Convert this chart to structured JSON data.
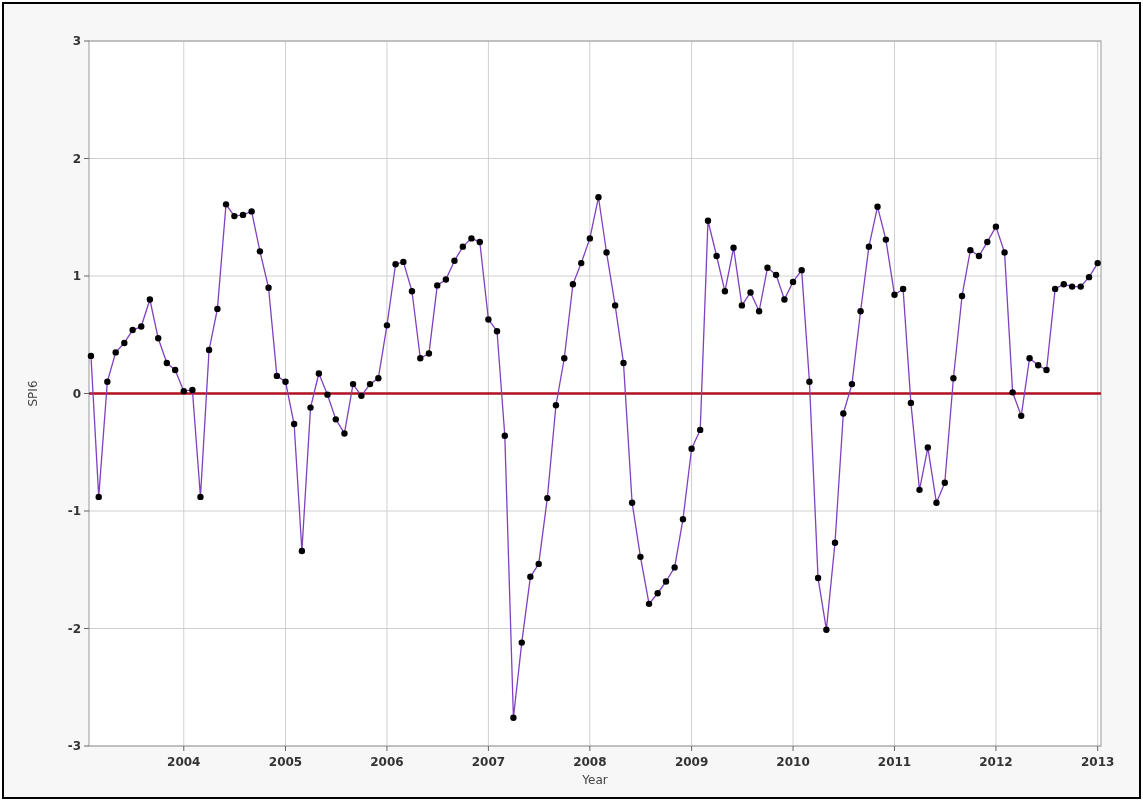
{
  "chart_data": {
    "type": "line",
    "xlabel": "Year",
    "ylabel": "SPI6",
    "x": [
      "2003-02",
      "2003-03",
      "2003-04",
      "2003-05",
      "2003-06",
      "2003-07",
      "2003-08",
      "2003-09",
      "2003-10",
      "2003-11",
      "2003-12",
      "2004-01",
      "2004-02",
      "2004-03",
      "2004-04",
      "2004-05",
      "2004-06",
      "2004-07",
      "2004-08",
      "2004-09",
      "2004-10",
      "2004-11",
      "2004-12",
      "2005-01",
      "2005-02",
      "2005-03",
      "2005-04",
      "2005-05",
      "2005-06",
      "2005-07",
      "2005-08",
      "2005-09",
      "2005-10",
      "2005-11",
      "2005-12",
      "2006-01",
      "2006-02",
      "2006-03",
      "2006-04",
      "2006-05",
      "2006-06",
      "2006-07",
      "2006-08",
      "2006-09",
      "2006-10",
      "2006-11",
      "2006-12",
      "2007-01",
      "2007-02",
      "2007-03",
      "2007-04",
      "2007-05",
      "2007-06",
      "2007-07",
      "2007-08",
      "2007-09",
      "2007-10",
      "2007-11",
      "2007-12",
      "2008-01",
      "2008-02",
      "2008-03",
      "2008-04",
      "2008-05",
      "2008-06",
      "2008-07",
      "2008-08",
      "2008-09",
      "2008-10",
      "2008-11",
      "2008-12",
      "2009-01",
      "2009-02",
      "2009-03",
      "2009-04",
      "2009-05",
      "2009-06",
      "2009-07",
      "2009-08",
      "2009-09",
      "2009-10",
      "2009-11",
      "2009-12",
      "2010-01",
      "2010-02",
      "2010-03",
      "2010-04",
      "2010-05",
      "2010-06",
      "2010-07",
      "2010-08",
      "2010-09",
      "2010-10",
      "2010-11",
      "2010-12",
      "2011-01",
      "2011-02",
      "2011-03",
      "2011-04",
      "2011-05",
      "2011-06",
      "2011-07",
      "2011-08",
      "2011-09",
      "2011-10",
      "2011-11",
      "2011-12",
      "2012-01",
      "2012-02",
      "2012-03",
      "2012-04",
      "2012-05",
      "2012-06",
      "2012-07",
      "2012-08",
      "2012-09",
      "2012-10",
      "2012-11",
      "2012-12",
      "2013-01"
    ],
    "series": [
      {
        "color": "#8040c0",
        "values": [
          0.32,
          -0.88,
          0.1,
          0.35,
          0.43,
          0.54,
          0.57,
          0.8,
          0.47,
          0.26,
          0.2,
          0.02,
          0.03,
          -0.88,
          0.37,
          0.72,
          1.61,
          1.51,
          1.52,
          1.55,
          1.21,
          0.9,
          0.15,
          0.1,
          -0.26,
          -1.34,
          -0.12,
          0.17,
          -0.01,
          -0.22,
          -0.34,
          0.08,
          -0.02,
          0.08,
          0.13,
          0.58,
          1.1,
          1.12,
          0.87,
          0.3,
          0.34,
          0.92,
          0.97,
          1.13,
          1.25,
          1.32,
          1.29,
          0.63,
          0.53,
          -0.36,
          -2.76,
          -2.12,
          -1.56,
          -1.45,
          -0.89,
          -0.1,
          0.3,
          0.93,
          1.11,
          1.32,
          1.67,
          1.2,
          0.75,
          0.26,
          -0.93,
          -1.39,
          -1.79,
          -1.7,
          -1.6,
          -1.48,
          -1.07,
          -0.47,
          -0.31,
          1.47,
          1.17,
          0.87,
          1.24,
          0.75,
          0.86,
          0.7,
          1.07,
          1.01,
          0.8,
          0.95,
          1.05,
          0.1,
          -1.57,
          -2.01,
          -1.27,
          -0.17,
          0.08,
          0.7,
          1.25,
          1.59,
          1.31,
          0.84,
          0.89,
          -0.08,
          -0.82,
          -0.46,
          -0.93,
          -0.76,
          0.13,
          0.83,
          1.22,
          1.17,
          1.29,
          1.42,
          1.2,
          0.01,
          -0.19,
          0.3,
          0.24,
          0.2,
          0.89,
          0.93,
          0.91,
          0.91,
          0.99,
          1.11
        ]
      }
    ],
    "xlim": [
      "2003-01-25",
      "2013-01-13"
    ],
    "xticks": [
      "2004",
      "2005",
      "2006",
      "2007",
      "2008",
      "2009",
      "2010",
      "2011",
      "2012",
      "2013"
    ],
    "ylim": [
      -3,
      3
    ],
    "yticks": [
      -3,
      -2,
      -1,
      0,
      1,
      2,
      3
    ],
    "ref_lines": [
      {
        "axis": "y",
        "value": 0,
        "color": "#b01020"
      }
    ],
    "grid": true,
    "marker": "circle",
    "line_style": "solid"
  }
}
